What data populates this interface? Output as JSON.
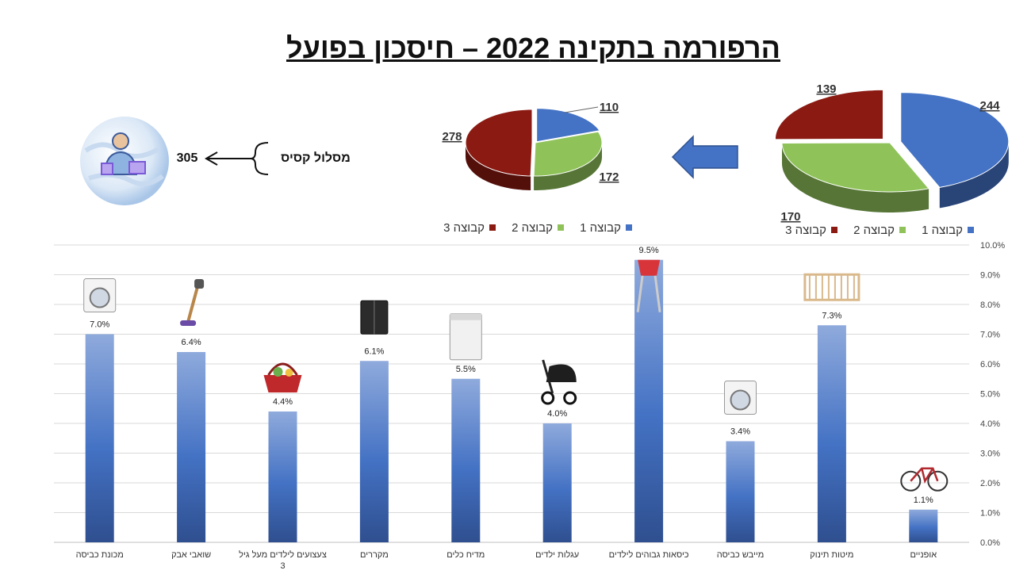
{
  "title": "הרפורמה בתקינה 2022 – חיסכון בפועל",
  "route": {
    "label": "מסלול קסיס",
    "value": "305"
  },
  "legend_items": [
    "קבוצה 1",
    "קבוצה 2",
    "קבוצה 3"
  ],
  "colors": {
    "group1": "#4472C4",
    "group2": "#8FC35A",
    "group3": "#8B1A12",
    "bar": "#4472C4"
  },
  "chart_data": [
    {
      "type": "pie",
      "chart": "before",
      "categories": [
        "קבוצה 1",
        "קבוצה 2",
        "קבוצה 3"
      ],
      "values": [
        244,
        170,
        139
      ]
    },
    {
      "type": "pie",
      "chart": "after",
      "categories": [
        "קבוצה 1",
        "קבוצה 2",
        "קבוצה 3"
      ],
      "values": [
        110,
        172,
        278
      ]
    },
    {
      "type": "bar",
      "categories": [
        "מכונת כביסה",
        "שואבי אבק",
        "צעצועים לילדים מעל גיל 3",
        "מקררים",
        "מדיח כלים",
        "עגלות ילדים",
        "כיסאות גבוהים לילדים",
        "מייבש כביסה",
        "מיטות תינוק",
        "אופניים"
      ],
      "category_lines": [
        [
          "מכונת כביסה"
        ],
        [
          "שואבי אבק"
        ],
        [
          "צעצועים לילדים מעל גיל",
          "3"
        ],
        [
          "מקררים"
        ],
        [
          "מדיח כלים"
        ],
        [
          "עגלות ילדים"
        ],
        [
          "כיסאות גבוהים לילדים"
        ],
        [
          "מייבש כביסה"
        ],
        [
          "מיטות תינוק"
        ],
        [
          "אופניים"
        ]
      ],
      "values": [
        7.0,
        6.4,
        4.4,
        6.1,
        5.5,
        4.0,
        9.5,
        3.4,
        7.3,
        1.1
      ],
      "data_labels": [
        "7.0%",
        "6.4%",
        "4.4%",
        "6.1%",
        "5.5%",
        "4.0%",
        "9.5%",
        "3.4%",
        "7.3%",
        "1.1%"
      ],
      "ylim": [
        0,
        10
      ],
      "y_ticks": [
        "0.0%",
        "1.0%",
        "2.0%",
        "3.0%",
        "4.0%",
        "5.0%",
        "6.0%",
        "7.0%",
        "8.0%",
        "9.0%",
        "10.0%"
      ],
      "y_axis_side": "right",
      "grid": true,
      "item_icons": [
        "washing-machine-icon",
        "vacuum-cleaner-icon",
        "toy-basket-icon",
        "refrigerator-icon",
        "dishwasher-icon",
        "stroller-icon",
        "high-chair-icon",
        "dryer-icon",
        "crib-icon",
        "bicycle-icon"
      ]
    }
  ]
}
